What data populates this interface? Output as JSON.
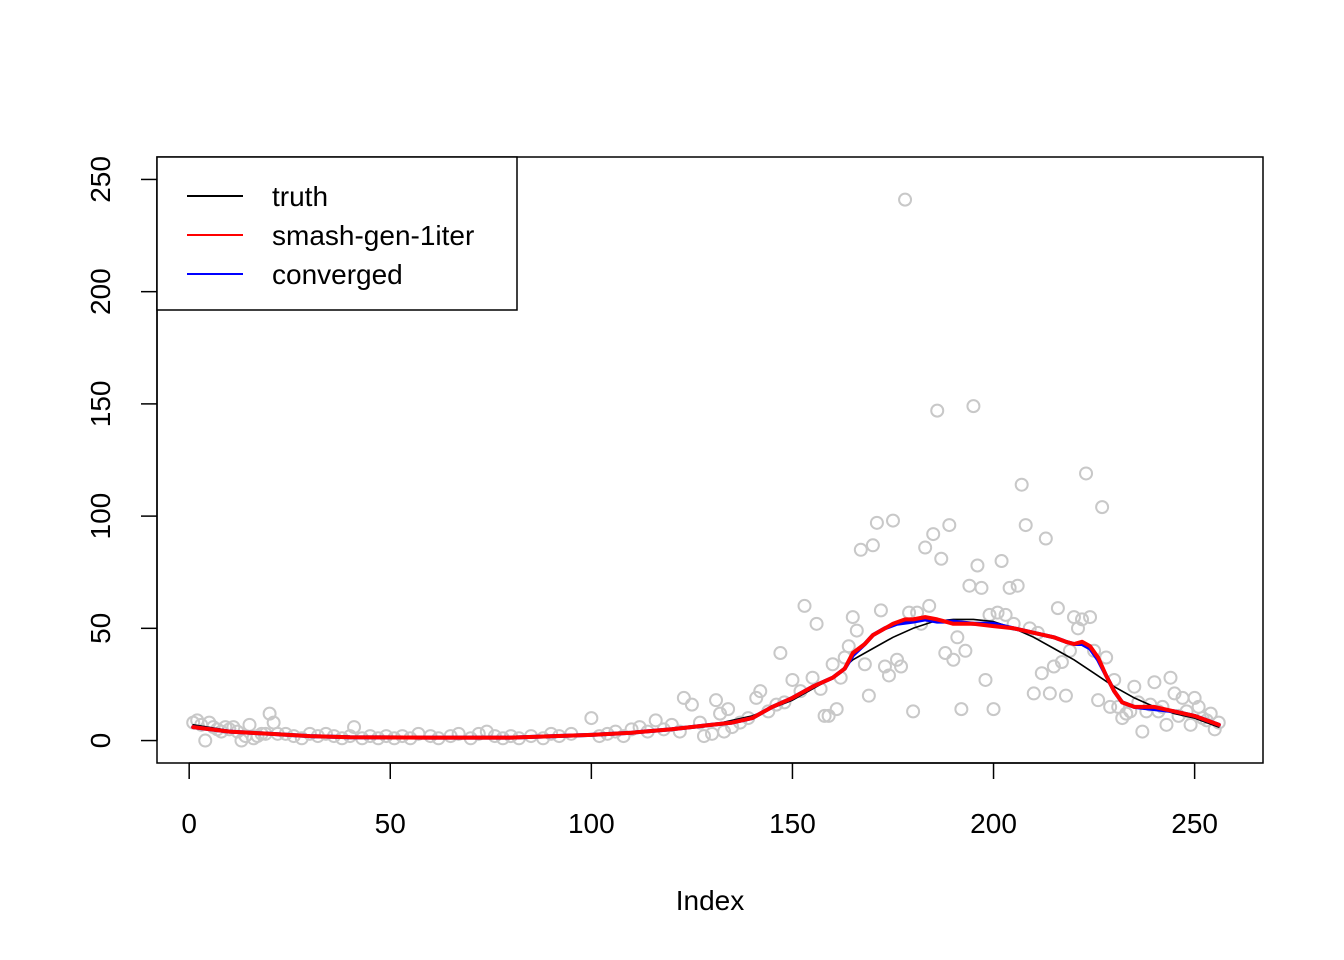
{
  "chart_data": {
    "type": "scatter",
    "title": "",
    "xlabel": "Index",
    "ylabel": "",
    "xlim": [
      -8,
      267
    ],
    "ylim": [
      -10,
      260
    ],
    "xticks": [
      "0",
      "50",
      "100",
      "150",
      "200",
      "250"
    ],
    "yticks": [
      "0",
      "50",
      "100",
      "150",
      "200",
      "250"
    ],
    "legend_position": "top-left",
    "grid": false,
    "legend": [
      {
        "label": "truth",
        "color": "#000000"
      },
      {
        "label": "smash-gen-1iter",
        "color": "#ff0000"
      },
      {
        "label": "converged",
        "color": "#0000ff"
      }
    ],
    "points_color": "#c8c8c8",
    "points": [
      [
        1,
        8
      ],
      [
        2,
        9
      ],
      [
        3,
        7
      ],
      [
        4,
        0
      ],
      [
        5,
        8
      ],
      [
        6,
        6
      ],
      [
        7,
        5
      ],
      [
        8,
        4
      ],
      [
        9,
        6
      ],
      [
        10,
        5
      ],
      [
        11,
        6
      ],
      [
        12,
        4
      ],
      [
        13,
        0
      ],
      [
        14,
        2
      ],
      [
        15,
        7
      ],
      [
        16,
        1
      ],
      [
        17,
        2
      ],
      [
        18,
        3
      ],
      [
        19,
        3
      ],
      [
        20,
        12
      ],
      [
        21,
        8
      ],
      [
        22,
        3
      ],
      [
        24,
        3
      ],
      [
        26,
        2
      ],
      [
        28,
        1
      ],
      [
        30,
        3
      ],
      [
        32,
        2
      ],
      [
        34,
        3
      ],
      [
        36,
        2
      ],
      [
        38,
        1
      ],
      [
        40,
        2
      ],
      [
        41,
        6
      ],
      [
        43,
        1
      ],
      [
        45,
        2
      ],
      [
        47,
        1
      ],
      [
        49,
        2
      ],
      [
        51,
        1
      ],
      [
        53,
        2
      ],
      [
        55,
        1
      ],
      [
        57,
        3
      ],
      [
        60,
        2
      ],
      [
        62,
        1
      ],
      [
        65,
        2
      ],
      [
        67,
        3
      ],
      [
        70,
        1
      ],
      [
        72,
        3
      ],
      [
        74,
        4
      ],
      [
        76,
        2
      ],
      [
        78,
        1
      ],
      [
        80,
        2
      ],
      [
        82,
        1
      ],
      [
        85,
        2
      ],
      [
        88,
        1
      ],
      [
        90,
        3
      ],
      [
        92,
        2
      ],
      [
        95,
        3
      ],
      [
        100,
        10
      ],
      [
        102,
        2
      ],
      [
        104,
        3
      ],
      [
        106,
        4
      ],
      [
        108,
        2
      ],
      [
        110,
        5
      ],
      [
        112,
        6
      ],
      [
        114,
        4
      ],
      [
        116,
        9
      ],
      [
        118,
        5
      ],
      [
        120,
        7
      ],
      [
        122,
        4
      ],
      [
        123,
        19
      ],
      [
        125,
        16
      ],
      [
        127,
        8
      ],
      [
        128,
        2
      ],
      [
        130,
        3
      ],
      [
        131,
        18
      ],
      [
        132,
        12
      ],
      [
        133,
        4
      ],
      [
        134,
        14
      ],
      [
        135,
        6
      ],
      [
        137,
        8
      ],
      [
        139,
        10
      ],
      [
        141,
        19
      ],
      [
        142,
        22
      ],
      [
        144,
        13
      ],
      [
        146,
        16
      ],
      [
        147,
        39
      ],
      [
        148,
        17
      ],
      [
        150,
        27
      ],
      [
        152,
        22
      ],
      [
        153,
        60
      ],
      [
        155,
        28
      ],
      [
        156,
        52
      ],
      [
        157,
        23
      ],
      [
        158,
        11
      ],
      [
        159,
        11
      ],
      [
        160,
        34
      ],
      [
        161,
        14
      ],
      [
        162,
        28
      ],
      [
        163,
        37
      ],
      [
        164,
        42
      ],
      [
        165,
        55
      ],
      [
        166,
        49
      ],
      [
        167,
        85
      ],
      [
        168,
        34
      ],
      [
        169,
        20
      ],
      [
        170,
        87
      ],
      [
        171,
        97
      ],
      [
        172,
        58
      ],
      [
        173,
        33
      ],
      [
        174,
        29
      ],
      [
        175,
        98
      ],
      [
        176,
        36
      ],
      [
        177,
        33
      ],
      [
        178,
        241
      ],
      [
        179,
        57
      ],
      [
        180,
        13
      ],
      [
        181,
        57
      ],
      [
        182,
        52
      ],
      [
        183,
        86
      ],
      [
        184,
        60
      ],
      [
        185,
        92
      ],
      [
        186,
        147
      ],
      [
        187,
        81
      ],
      [
        188,
        39
      ],
      [
        189,
        96
      ],
      [
        190,
        36
      ],
      [
        191,
        46
      ],
      [
        192,
        14
      ],
      [
        193,
        40
      ],
      [
        194,
        69
      ],
      [
        195,
        149
      ],
      [
        196,
        78
      ],
      [
        197,
        68
      ],
      [
        198,
        27
      ],
      [
        199,
        56
      ],
      [
        200,
        14
      ],
      [
        201,
        57
      ],
      [
        202,
        80
      ],
      [
        203,
        56
      ],
      [
        204,
        68
      ],
      [
        205,
        52
      ],
      [
        206,
        69
      ],
      [
        207,
        114
      ],
      [
        208,
        96
      ],
      [
        209,
        50
      ],
      [
        210,
        21
      ],
      [
        211,
        48
      ],
      [
        212,
        30
      ],
      [
        213,
        90
      ],
      [
        214,
        21
      ],
      [
        215,
        33
      ],
      [
        216,
        59
      ],
      [
        217,
        35
      ],
      [
        218,
        20
      ],
      [
        219,
        40
      ],
      [
        220,
        55
      ],
      [
        221,
        50
      ],
      [
        222,
        54
      ],
      [
        223,
        119
      ],
      [
        224,
        55
      ],
      [
        225,
        40
      ],
      [
        226,
        18
      ],
      [
        227,
        104
      ],
      [
        228,
        37
      ],
      [
        229,
        15
      ],
      [
        230,
        27
      ],
      [
        231,
        15
      ],
      [
        232,
        10
      ],
      [
        233,
        12
      ],
      [
        234,
        13
      ],
      [
        235,
        24
      ],
      [
        236,
        17
      ],
      [
        237,
        4
      ],
      [
        238,
        13
      ],
      [
        239,
        16
      ],
      [
        240,
        26
      ],
      [
        241,
        13
      ],
      [
        242,
        15
      ],
      [
        243,
        7
      ],
      [
        244,
        28
      ],
      [
        245,
        21
      ],
      [
        246,
        11
      ],
      [
        247,
        19
      ],
      [
        248,
        13
      ],
      [
        249,
        7
      ],
      [
        250,
        19
      ],
      [
        251,
        15
      ],
      [
        252,
        10
      ],
      [
        253,
        9
      ],
      [
        254,
        12
      ],
      [
        255,
        5
      ],
      [
        256,
        8
      ]
    ],
    "series": [
      {
        "name": "truth",
        "color": "#000000",
        "width": 1.6,
        "x": [
          1,
          10,
          20,
          30,
          40,
          60,
          80,
          100,
          110,
          120,
          130,
          140,
          150,
          160,
          165,
          170,
          175,
          180,
          185,
          190,
          195,
          200,
          205,
          210,
          215,
          220,
          225,
          230,
          235,
          240,
          245,
          250,
          256
        ],
        "y": [
          7,
          4.5,
          3,
          2,
          1.5,
          1.3,
          1.5,
          2.5,
          3.5,
          5,
          7,
          11,
          18,
          28,
          36,
          41,
          46,
          50,
          53,
          54,
          54,
          53,
          50,
          46,
          41,
          36,
          30,
          24,
          19,
          15,
          12,
          10,
          6
        ]
      },
      {
        "name": "converged",
        "color": "#0000ff",
        "width": 4,
        "x": [
          1,
          10,
          20,
          30,
          40,
          60,
          80,
          100,
          110,
          120,
          130,
          135,
          140,
          145,
          150,
          155,
          160,
          163,
          165,
          168,
          170,
          173,
          176,
          180,
          183,
          186,
          190,
          195,
          200,
          205,
          210,
          215,
          218,
          220,
          222,
          224,
          226,
          228,
          230,
          232,
          235,
          240,
          245,
          250,
          256
        ],
        "y": [
          6,
          4,
          3,
          2,
          1.5,
          1.3,
          1.3,
          2.5,
          3.5,
          5,
          7,
          8,
          10,
          15,
          19,
          24,
          28,
          32,
          38,
          43,
          47,
          50,
          52,
          53,
          54,
          53,
          53,
          52,
          52,
          50,
          48,
          46,
          44,
          43,
          43,
          41,
          36,
          29,
          22,
          17,
          15,
          14,
          13,
          11,
          7
        ]
      },
      {
        "name": "smash-gen-1iter",
        "color": "#ff0000",
        "width": 4,
        "x": [
          1,
          10,
          20,
          30,
          40,
          60,
          80,
          100,
          110,
          120,
          130,
          135,
          140,
          145,
          150,
          155,
          160,
          163,
          165,
          168,
          170,
          172,
          175,
          178,
          180,
          183,
          186,
          188,
          190,
          195,
          200,
          205,
          210,
          215,
          218,
          220,
          222,
          224,
          226,
          228,
          230,
          232,
          235,
          240,
          245,
          250,
          256
        ],
        "y": [
          6,
          4,
          3,
          2,
          1.5,
          1.3,
          1.3,
          2.5,
          3.5,
          5,
          7,
          8,
          10,
          15,
          19,
          24,
          28,
          32,
          39,
          43,
          47,
          49,
          52,
          54,
          54,
          55,
          54,
          53,
          52,
          52,
          51,
          50,
          48,
          46,
          44,
          43,
          44,
          42,
          37,
          29,
          22,
          17,
          15,
          15,
          13,
          11,
          7
        ]
      }
    ]
  }
}
